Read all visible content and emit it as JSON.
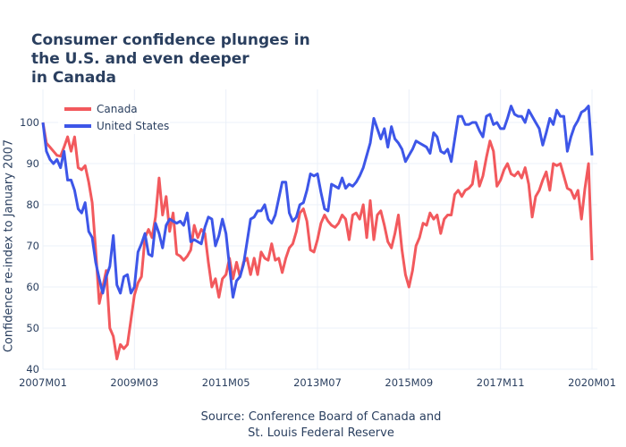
{
  "chart_data": {
    "type": "line",
    "title": [
      "Consumer confidence plunges in",
      "the U.S. and even deeper",
      "in Canada"
    ],
    "xlabel": "",
    "ylabel": "Confidence re-index to January 2007",
    "source": [
      "Source: Conference Board of Canada and",
      "St. Louis Federal Reserve"
    ],
    "x_start": "2007M01",
    "x_ticks": [
      "2007M01",
      "2009M03",
      "2011M05",
      "2013M07",
      "2015M09",
      "2017M11",
      "2020M01"
    ],
    "x_tick_months": [
      0,
      26,
      52,
      78,
      104,
      130,
      156
    ],
    "y_ticks": [
      40,
      50,
      60,
      70,
      80,
      90,
      100
    ],
    "ylim": [
      40,
      102
    ],
    "grid": true,
    "legend_position": "top-left",
    "series": [
      {
        "name": "Canada",
        "color": "#ef553b",
        "display_color": "#f2595d",
        "values": [
          100,
          95,
          94,
          93,
          92,
          91.8,
          94,
          96.5,
          93,
          96.5,
          89,
          88.5,
          89.5,
          85.5,
          80.5,
          69,
          56,
          60,
          64,
          50,
          48,
          42.5,
          46,
          45,
          46,
          52,
          58,
          61,
          62.5,
          72,
          74,
          72,
          77,
          86.5,
          77.5,
          82,
          73.5,
          78,
          68,
          67.5,
          66.5,
          67.5,
          69,
          75,
          72,
          74,
          73,
          66,
          60,
          62,
          57.5,
          62,
          63,
          67,
          62,
          66,
          62.5,
          66,
          67,
          63,
          67,
          63,
          68.5,
          67,
          66.5,
          70.5,
          66.5,
          67,
          63.5,
          67,
          69.5,
          70.5,
          73.5,
          78,
          79,
          76,
          69,
          68.5,
          71.5,
          75.5,
          77.5,
          76,
          75,
          74.5,
          75.5,
          77.5,
          76.5,
          71.5,
          77.5,
          78,
          76.5,
          80,
          72,
          81,
          71.5,
          77.5,
          78.5,
          75,
          71,
          69.5,
          73,
          77.5,
          69,
          63,
          60,
          64,
          70,
          72,
          75.5,
          75,
          78,
          76.5,
          77.5,
          73,
          76.5,
          77.5,
          77.5,
          82.5,
          83.5,
          82,
          83.5,
          84,
          85,
          90.5,
          84.5,
          87,
          91.5,
          95.5,
          93,
          84.5,
          86,
          88.5,
          90,
          87.5,
          87,
          88,
          86.5,
          89,
          85,
          77,
          82,
          83.5,
          86,
          88,
          83.5,
          90,
          89.5,
          90,
          87,
          84,
          83.5,
          81.5,
          83.5,
          76.5,
          84,
          90,
          66.5
        ]
      },
      {
        "name": "United States",
        "color": "#636efa",
        "display_color": "#3d56e8",
        "values": [
          100,
          93,
          91,
          90,
          91,
          89,
          93,
          86,
          86,
          83.5,
          79,
          78,
          80.5,
          73.5,
          72,
          66,
          62,
          58.5,
          62.5,
          65,
          72.5,
          60.5,
          58.5,
          62.5,
          63,
          58.5,
          60,
          68.5,
          70.5,
          73,
          68,
          67.5,
          75.5,
          73,
          69.5,
          75,
          76.5,
          76,
          75.5,
          76,
          75,
          78,
          71,
          71.5,
          71,
          70.5,
          74.5,
          77,
          76.5,
          70,
          72.5,
          76.5,
          73,
          65,
          57.5,
          61.5,
          62.5,
          65.5,
          71,
          76.5,
          77,
          78.5,
          78.5,
          80,
          76.5,
          75.5,
          77.5,
          81.5,
          85.5,
          85.5,
          78,
          76,
          77,
          80,
          80.5,
          83.5,
          87.5,
          87,
          87.5,
          83,
          79,
          78.5,
          85,
          84.5,
          84,
          86.5,
          84,
          85,
          84.5,
          85.5,
          87,
          89,
          92,
          95,
          101,
          98.5,
          96,
          98.5,
          94,
          99,
          96,
          95,
          93.5,
          90.5,
          92,
          93.5,
          95.5,
          95,
          94.5,
          94,
          92.5,
          97.5,
          96.5,
          93,
          92.5,
          93.5,
          90.5,
          96,
          101.5,
          101.5,
          99.5,
          99.5,
          100,
          100,
          98,
          96.5,
          101.5,
          102,
          99.5,
          100,
          98.5,
          98.5,
          101,
          104,
          102,
          101.5,
          101.5,
          100,
          103,
          101.5,
          100,
          98.5,
          94.5,
          97.5,
          101,
          99.5,
          103,
          101.5,
          101.5,
          93,
          96.5,
          99,
          100.5,
          102.5,
          103,
          104,
          92
        ]
      }
    ]
  }
}
